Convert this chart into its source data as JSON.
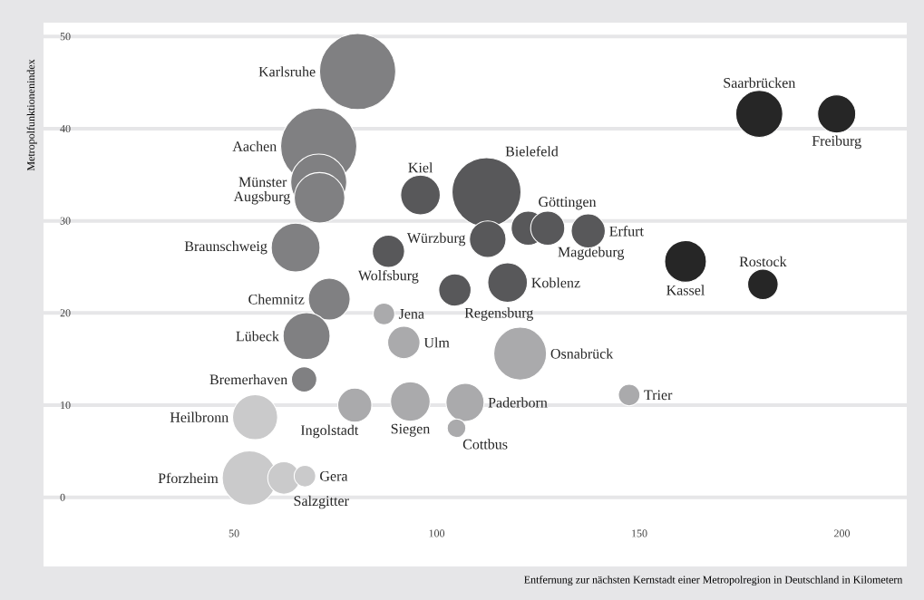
{
  "chart_data": {
    "type": "bubble",
    "xlabel": "Entfernung zur nächsten Kernstadt einer Metropolregion in Deutschland in Kilometern",
    "ylabel": "Metropolfunktionenindex",
    "xlim": [
      3,
      216
    ],
    "ylim": [
      -7.5,
      51.5
    ],
    "xticks": [
      50,
      100,
      150,
      200
    ],
    "yticks": [
      0,
      10,
      20,
      30,
      40,
      50
    ],
    "grid": "y",
    "series": [
      {
        "color": "#808082",
        "x": [
          80.5,
          70.9,
          70.9,
          71.1,
          65.2,
          73.5,
          67.9,
          67.3
        ],
        "values": [
          46.2,
          38.1,
          34.2,
          32.5,
          27.1,
          21.5,
          17.5,
          12.8
        ],
        "sizes": [
          1.0,
          1.0,
          0.54,
          0.44,
          0.41,
          0.3,
          0.38,
          0.11
        ]
      },
      {
        "color": "#58585a",
        "x": [
          96.0,
          112.3,
          112.6,
          88.1,
          122.6,
          127.4,
          137.4,
          117.5,
          104.5
        ],
        "values": [
          32.8,
          33.1,
          28.0,
          26.7,
          29.2,
          29.2,
          28.9,
          23.3,
          22.5
        ],
        "sizes": [
          0.27,
          0.82,
          0.23,
          0.18,
          0.2,
          0.2,
          0.2,
          0.27,
          0.18
        ]
      },
      {
        "color": "#262626",
        "x": [
          179.6,
          198.7,
          161.4,
          180.5
        ],
        "values": [
          41.6,
          41.6,
          25.6,
          23.1
        ],
        "sizes": [
          0.38,
          0.25,
          0.3,
          0.16
        ]
      },
      {
        "color": "#aaaaac",
        "x": [
          87.0,
          91.9,
          120.6,
          147.5,
          79.8,
          93.5,
          107.0,
          104.9
        ],
        "values": [
          19.9,
          16.8,
          15.6,
          11.1,
          10.0,
          10.4,
          10.3,
          7.5
        ],
        "sizes": [
          0.08,
          0.18,
          0.48,
          0.08,
          0.2,
          0.27,
          0.25,
          0.06
        ]
      },
      {
        "color": "#cacacb",
        "x": [
          55.2,
          53.8,
          62.3,
          67.5
        ],
        "values": [
          8.7,
          2.1,
          2.1,
          2.3
        ],
        "sizes": [
          0.35,
          0.51,
          0.18,
          0.08
        ]
      }
    ],
    "annotations": [
      {
        "text": "Karlsruhe",
        "x": 80.5,
        "y": 46.2
      },
      {
        "text": "Aachen",
        "x": 70.9,
        "y": 38.1
      },
      {
        "text": "Münster",
        "x": 70.9,
        "y": 34.2
      },
      {
        "text": "Augsburg",
        "x": 71.1,
        "y": 32.5
      },
      {
        "text": "Braunschweig",
        "x": 65.2,
        "y": 27.1
      },
      {
        "text": "Chemnitz",
        "x": 73.5,
        "y": 21.5
      },
      {
        "text": "Lübeck",
        "x": 67.9,
        "y": 17.5
      },
      {
        "text": "Bremerhaven",
        "x": 67.3,
        "y": 12.8
      },
      {
        "text": "Kiel",
        "x": 96.0,
        "y": 32.8
      },
      {
        "text": "Bielefeld",
        "x": 112.3,
        "y": 33.1
      },
      {
        "text": "Würzburg",
        "x": 112.6,
        "y": 28.0
      },
      {
        "text": "Wolfsburg",
        "x": 88.1,
        "y": 26.7
      },
      {
        "text": "Göttingen",
        "x": 122.6,
        "y": 29.2
      },
      {
        "text": "Magdeburg",
        "x": 127.4,
        "y": 29.2
      },
      {
        "text": "Erfurt",
        "x": 137.4,
        "y": 28.9
      },
      {
        "text": "Koblenz",
        "x": 117.5,
        "y": 23.3
      },
      {
        "text": "Regensburg",
        "x": 104.5,
        "y": 22.5
      },
      {
        "text": "Saarbrücken",
        "x": 179.6,
        "y": 41.6
      },
      {
        "text": "Freiburg",
        "x": 198.7,
        "y": 41.6
      },
      {
        "text": "Kassel",
        "x": 161.4,
        "y": 25.6
      },
      {
        "text": "Rostock",
        "x": 180.5,
        "y": 23.1
      },
      {
        "text": "Jena",
        "x": 87.0,
        "y": 19.9
      },
      {
        "text": "Ulm",
        "x": 91.9,
        "y": 16.8
      },
      {
        "text": "Osnabrück",
        "x": 120.6,
        "y": 15.6
      },
      {
        "text": "Trier",
        "x": 147.5,
        "y": 11.1
      },
      {
        "text": "Ingolstadt",
        "x": 79.8,
        "y": 10.0
      },
      {
        "text": "Siegen",
        "x": 93.5,
        "y": 10.4
      },
      {
        "text": "Paderborn",
        "x": 107.0,
        "y": 10.3
      },
      {
        "text": "Cottbus",
        "x": 104.9,
        "y": 7.5
      },
      {
        "text": "Heilbronn",
        "x": 55.2,
        "y": 8.7
      },
      {
        "text": "Pforzheim",
        "x": 53.8,
        "y": 2.1
      },
      {
        "text": "Salzgitter",
        "x": 62.3,
        "y": 2.1
      },
      {
        "text": "Gera",
        "x": 67.5,
        "y": 2.3
      }
    ]
  }
}
